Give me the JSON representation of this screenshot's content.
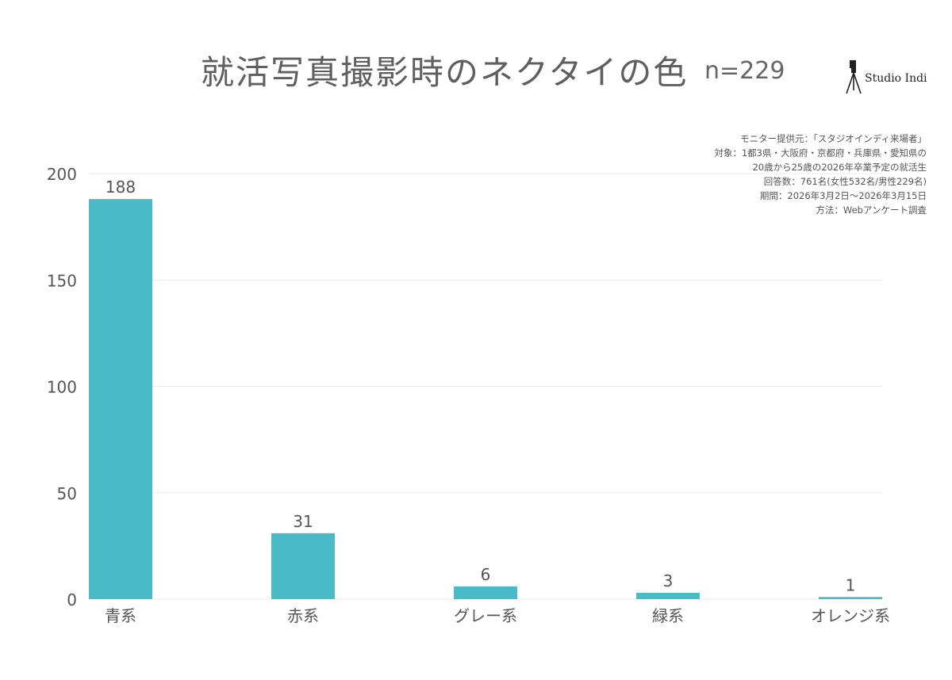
{
  "header": {
    "title": "就活写真撮影時のネクタイの色",
    "sample_size": "n=229",
    "brand": "Studio Indi",
    "brand_icon": "camera-tripod-icon"
  },
  "notes": [
    "モニター提供元：「スタジオインディ来場者」",
    "対象：1都3県・大阪府・京都府・兵庫県・愛知県の",
    "20歳から25歳の2026年卒業予定の就活生",
    "回答数：761名(女性532名/男性229名)",
    "期間：2026年3月2日〜2026年3月15日",
    "方法：Webアンケート調査"
  ],
  "colors": {
    "bar": "#4bbac7",
    "grid": "#e9e9e9",
    "axis_text": "#555555"
  },
  "chart_data": {
    "type": "bar",
    "categories": [
      "青系",
      "赤系",
      "グレー系",
      "緑系",
      "オレンジ系"
    ],
    "values": [
      188,
      31,
      6,
      3,
      1
    ],
    "ylim": [
      0,
      200
    ],
    "yticks": [
      0,
      50,
      100,
      150,
      200
    ],
    "grid": true
  }
}
